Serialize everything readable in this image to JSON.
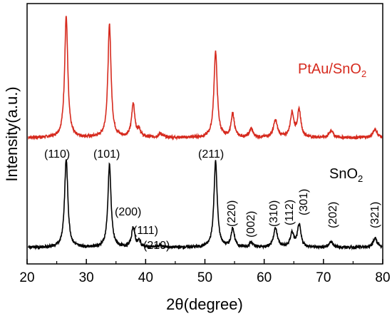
{
  "chart_data": {
    "type": "line",
    "xlabel": "2θ(degree)",
    "ylabel": "Intensity(a.u.)",
    "xlim": [
      20,
      80
    ],
    "xticks": [
      "20",
      "30",
      "40",
      "50",
      "60",
      "70",
      "80"
    ],
    "grid": false,
    "series": [
      {
        "name": "PtAu/SnO2",
        "label_main": "PtAu/SnO",
        "label_sub": "2",
        "color": "#d62a1e",
        "baseline": 0.0,
        "noise": 0.012,
        "peaks": [
          {
            "x": 26.6,
            "h": 1.0,
            "w": 0.32
          },
          {
            "x": 33.9,
            "h": 0.93,
            "w": 0.32
          },
          {
            "x": 37.9,
            "h": 0.28,
            "w": 0.32
          },
          {
            "x": 38.9,
            "h": 0.06,
            "w": 0.3
          },
          {
            "x": 42.5,
            "h": 0.03,
            "w": 0.4
          },
          {
            "x": 51.8,
            "h": 0.71,
            "w": 0.33
          },
          {
            "x": 54.7,
            "h": 0.19,
            "w": 0.33
          },
          {
            "x": 57.8,
            "h": 0.07,
            "w": 0.35
          },
          {
            "x": 61.9,
            "h": 0.14,
            "w": 0.4
          },
          {
            "x": 64.7,
            "h": 0.2,
            "w": 0.35
          },
          {
            "x": 65.9,
            "h": 0.22,
            "w": 0.35
          },
          {
            "x": 71.3,
            "h": 0.06,
            "w": 0.38
          },
          {
            "x": 78.7,
            "h": 0.07,
            "w": 0.4
          }
        ]
      },
      {
        "name": "SnO2",
        "label_main": "SnO",
        "label_sub": "2",
        "color": "#000000",
        "baseline": 0.0,
        "noise": 0.012,
        "peaks": [
          {
            "x": 26.6,
            "h": 0.75,
            "w": 0.33
          },
          {
            "x": 33.9,
            "h": 0.7,
            "w": 0.32
          },
          {
            "x": 37.9,
            "h": 0.17,
            "w": 0.32
          },
          {
            "x": 38.9,
            "h": 0.05,
            "w": 0.3
          },
          {
            "x": 42.5,
            "h": 0.02,
            "w": 0.4
          },
          {
            "x": 51.8,
            "h": 0.73,
            "w": 0.33
          },
          {
            "x": 54.7,
            "h": 0.16,
            "w": 0.33
          },
          {
            "x": 57.8,
            "h": 0.04,
            "w": 0.35
          },
          {
            "x": 61.9,
            "h": 0.16,
            "w": 0.4
          },
          {
            "x": 64.7,
            "h": 0.12,
            "w": 0.35
          },
          {
            "x": 65.9,
            "h": 0.19,
            "w": 0.35
          },
          {
            "x": 71.3,
            "h": 0.05,
            "w": 0.38
          },
          {
            "x": 78.7,
            "h": 0.08,
            "w": 0.4
          }
        ]
      }
    ],
    "annotations": [
      {
        "text": "(110)",
        "x": 26.6
      },
      {
        "text": "(101)",
        "x": 33.9
      },
      {
        "text": "(200)",
        "x": 37.9
      },
      {
        "text": "(111)",
        "x": 38.9
      },
      {
        "text": "(210)",
        "x": 42.5
      },
      {
        "text": "(211)",
        "x": 51.8
      },
      {
        "text": "(220)",
        "x": 54.7
      },
      {
        "text": "(002)",
        "x": 57.8
      },
      {
        "text": "(310)",
        "x": 61.9
      },
      {
        "text": "(112)",
        "x": 64.7
      },
      {
        "text": "(301)",
        "x": 65.9
      },
      {
        "text": "(202)",
        "x": 71.3
      },
      {
        "text": "(321)",
        "x": 78.7
      }
    ]
  }
}
